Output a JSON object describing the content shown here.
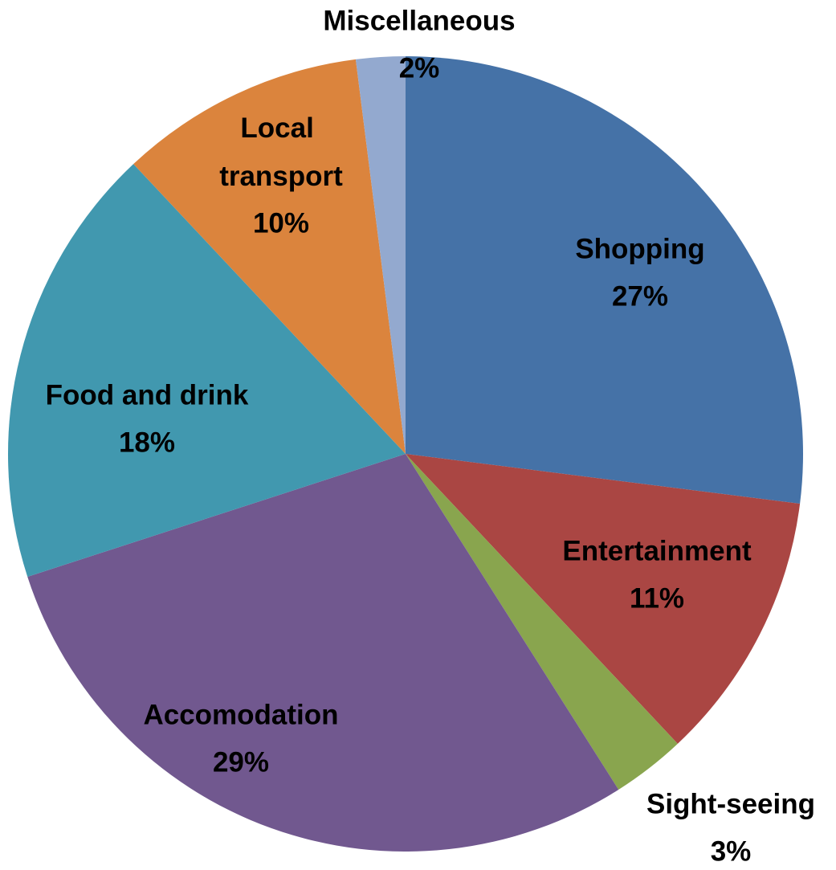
{
  "chart_data": {
    "type": "pie",
    "categories": [
      "Shopping",
      "Entertainment",
      "Sight-seeing",
      "Accomodation",
      "Food and drink",
      "Local transport",
      "Miscellaneous"
    ],
    "values": [
      27,
      11,
      3,
      29,
      18,
      10,
      2
    ],
    "value_labels": [
      "27%",
      "11%",
      "3%",
      "29%",
      "18%",
      "10%",
      "2%"
    ],
    "colors": [
      "#4572a7",
      "#aa4643",
      "#89a54e",
      "#71588f",
      "#4198af",
      "#db843d",
      "#93a9cf"
    ]
  }
}
